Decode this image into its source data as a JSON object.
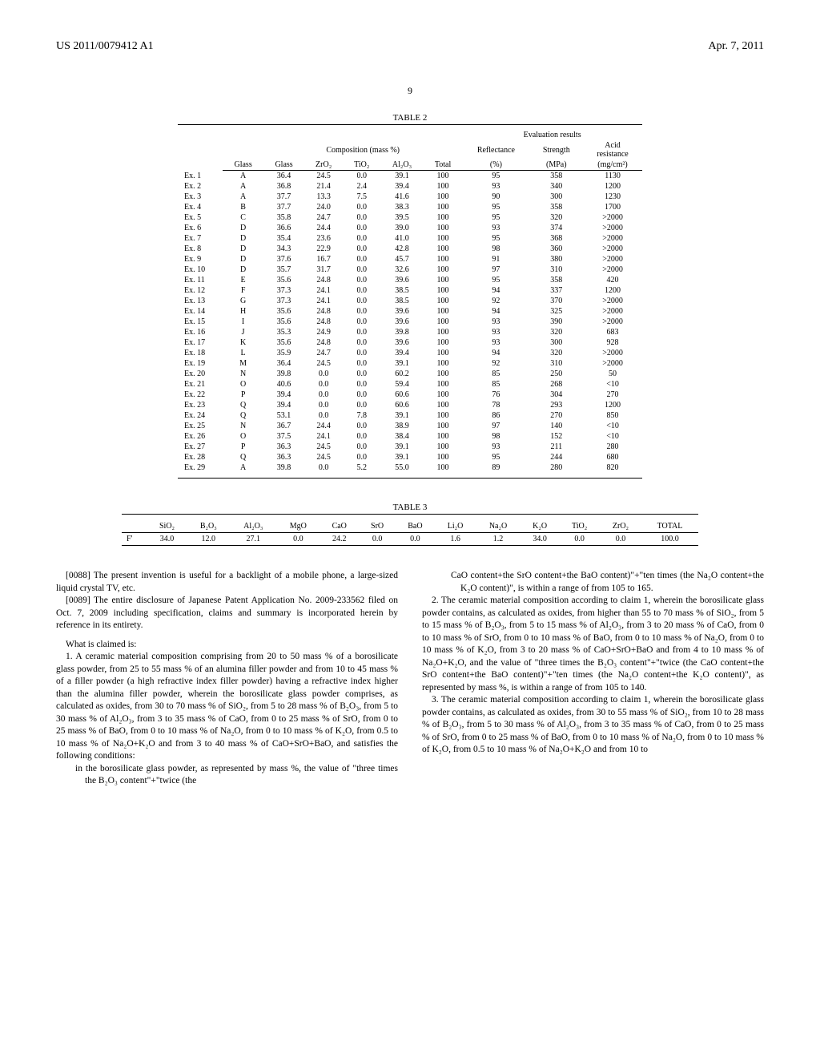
{
  "header": {
    "pub_no": "US 2011/0079412 A1",
    "date": "Apr. 7, 2011"
  },
  "page_number": "9",
  "table2": {
    "caption": "TABLE 2",
    "group_headers": {
      "comp": "Composition (mass %)",
      "eval": "Evaluation results"
    },
    "sub_headers": {
      "refl": "Reflectance",
      "str": "Strength",
      "acid": "Acid\nresistance"
    },
    "col_headers": [
      "",
      "Glass",
      "Glass",
      "ZrO₂",
      "TiO₂",
      "Al₂O₃",
      "Total",
      "(%)",
      "(MPa)",
      "(mg/cm²)"
    ],
    "rows": [
      [
        "Ex. 1",
        "A",
        "36.4",
        "24.5",
        "0.0",
        "39.1",
        "100",
        "95",
        "358",
        "1130"
      ],
      [
        "Ex. 2",
        "A",
        "36.8",
        "21.4",
        "2.4",
        "39.4",
        "100",
        "93",
        "340",
        "1200"
      ],
      [
        "Ex. 3",
        "A",
        "37.7",
        "13.3",
        "7.5",
        "41.6",
        "100",
        "90",
        "300",
        "1230"
      ],
      [
        "Ex. 4",
        "B",
        "37.7",
        "24.0",
        "0.0",
        "38.3",
        "100",
        "95",
        "358",
        "1700"
      ],
      [
        "Ex. 5",
        "C",
        "35.8",
        "24.7",
        "0.0",
        "39.5",
        "100",
        "95",
        "320",
        ">2000"
      ],
      [
        "Ex. 6",
        "D",
        "36.6",
        "24.4",
        "0.0",
        "39.0",
        "100",
        "93",
        "374",
        ">2000"
      ],
      [
        "Ex. 7",
        "D",
        "35.4",
        "23.6",
        "0.0",
        "41.0",
        "100",
        "95",
        "368",
        ">2000"
      ],
      [
        "Ex. 8",
        "D",
        "34.3",
        "22.9",
        "0.0",
        "42.8",
        "100",
        "98",
        "360",
        ">2000"
      ],
      [
        "Ex. 9",
        "D",
        "37.6",
        "16.7",
        "0.0",
        "45.7",
        "100",
        "91",
        "380",
        ">2000"
      ],
      [
        "Ex. 10",
        "D",
        "35.7",
        "31.7",
        "0.0",
        "32.6",
        "100",
        "97",
        "310",
        ">2000"
      ],
      [
        "Ex. 11",
        "E",
        "35.6",
        "24.8",
        "0.0",
        "39.6",
        "100",
        "95",
        "358",
        "420"
      ],
      [
        "Ex. 12",
        "F",
        "37.3",
        "24.1",
        "0.0",
        "38.5",
        "100",
        "94",
        "337",
        "1200"
      ],
      [
        "Ex. 13",
        "G",
        "37.3",
        "24.1",
        "0.0",
        "38.5",
        "100",
        "92",
        "370",
        ">2000"
      ],
      [
        "Ex. 14",
        "H",
        "35.6",
        "24.8",
        "0.0",
        "39.6",
        "100",
        "94",
        "325",
        ">2000"
      ],
      [
        "Ex. 15",
        "I",
        "35.6",
        "24.8",
        "0.0",
        "39.6",
        "100",
        "93",
        "390",
        ">2000"
      ],
      [
        "Ex. 16",
        "J",
        "35.3",
        "24.9",
        "0.0",
        "39.8",
        "100",
        "93",
        "320",
        "683"
      ],
      [
        "Ex. 17",
        "K",
        "35.6",
        "24.8",
        "0.0",
        "39.6",
        "100",
        "93",
        "300",
        "928"
      ],
      [
        "Ex. 18",
        "L",
        "35.9",
        "24.7",
        "0.0",
        "39.4",
        "100",
        "94",
        "320",
        ">2000"
      ],
      [
        "Ex. 19",
        "M",
        "36.4",
        "24.5",
        "0.0",
        "39.1",
        "100",
        "92",
        "310",
        ">2000"
      ],
      [
        "Ex. 20",
        "N",
        "39.8",
        "0.0",
        "0.0",
        "60.2",
        "100",
        "85",
        "250",
        "50"
      ],
      [
        "Ex. 21",
        "O",
        "40.6",
        "0.0",
        "0.0",
        "59.4",
        "100",
        "85",
        "268",
        "<10"
      ],
      [
        "Ex. 22",
        "P",
        "39.4",
        "0.0",
        "0.0",
        "60.6",
        "100",
        "76",
        "304",
        "270"
      ],
      [
        "Ex. 23",
        "Q",
        "39.4",
        "0.0",
        "0.0",
        "60.6",
        "100",
        "78",
        "293",
        "1200"
      ],
      [
        "Ex. 24",
        "Q",
        "53.1",
        "0.0",
        "7.8",
        "39.1",
        "100",
        "86",
        "270",
        "850"
      ],
      [
        "Ex. 25",
        "N",
        "36.7",
        "24.4",
        "0.0",
        "38.9",
        "100",
        "97",
        "140",
        "<10"
      ],
      [
        "Ex. 26",
        "O",
        "37.5",
        "24.1",
        "0.0",
        "38.4",
        "100",
        "98",
        "152",
        "<10"
      ],
      [
        "Ex. 27",
        "P",
        "36.3",
        "24.5",
        "0.0",
        "39.1",
        "100",
        "93",
        "211",
        "280"
      ],
      [
        "Ex. 28",
        "Q",
        "36.3",
        "24.5",
        "0.0",
        "39.1",
        "100",
        "95",
        "244",
        "680"
      ],
      [
        "Ex. 29",
        "A",
        "39.8",
        "0.0",
        "5.2",
        "55.0",
        "100",
        "89",
        "280",
        "820"
      ]
    ]
  },
  "table3": {
    "caption": "TABLE 3",
    "headers": [
      "",
      "SiO₂",
      "B₂O₃",
      "Al₂O₃",
      "MgO",
      "CaO",
      "SrO",
      "BaO",
      "Li₂O",
      "Na₂O",
      "K₂O",
      "TiO₂",
      "ZrO₂",
      "TOTAL"
    ],
    "row": [
      "F'",
      "34.0",
      "12.0",
      "27.1",
      "0.0",
      "24.2",
      "0.0",
      "0.0",
      "1.6",
      "1.2",
      "34.0",
      "0.0",
      "0.0",
      "100.0"
    ]
  },
  "body": {
    "para88": "[0088]    The present invention is useful for a backlight of a mobile phone, a large-sized liquid crystal TV, etc.",
    "para89": "[0089]    The entire disclosure of Japanese Patent Application No. 2009-233562 filed on Oct. 7, 2009 including specification, claims and summary is incorporated herein by reference in its entirety.",
    "claimed": "What is claimed is:",
    "claim1": "1. A ceramic material composition comprising from 20 to 50 mass % of a borosilicate glass powder, from 25 to 55 mass % of an alumina filler powder and from 10 to 45 mass % of a filler powder (a high refractive index filler powder) having a refractive index higher than the alumina filler powder, wherein the borosilicate glass powder comprises, as calculated as oxides, from 30 to 70 mass % of SiO₂, from 5 to 28 mass % of B₂O₃, from 5 to 30 mass % of Al₂O₃, from 3 to 35 mass % of CaO, from 0 to 25 mass % of SrO, from 0 to 25 mass % of BaO, from 0 to 10 mass % of Na₂O, from 0 to 10 mass % of K₂O, from 0.5 to 10 mass % of Na₂O+K₂O and from 3 to 40 mass % of CaO+SrO+BaO, and satisfies the following conditions:",
    "claim1sub": "in the borosilicate glass powder, as represented by mass %, the value of \"three times the B₂O₃ content\"+\"twice (the",
    "claim1cont": "CaO content+the SrO content+the BaO content)\"+\"ten times (the Na₂O content+the K₂O content)\", is within a range of from 105 to 165.",
    "claim2": "2. The ceramic material composition according to claim 1, wherein the borosilicate glass powder contains, as calculated as oxides, from higher than 55 to 70 mass % of SiO₂, from 5 to 15 mass % of B₂O₃, from 5 to 15 mass % of Al₂O₃, from 3 to 20 mass % of CaO, from 0 to 10 mass % of SrO, from 0 to 10 mass % of BaO, from 0 to 10 mass % of Na₂O, from 0 to 10 mass % of K₂O, from 3 to 20 mass % of CaO+SrO+BaO and from 4 to 10 mass % of Na₂O+K₂O, and the value of \"three times the B₂O₃ content\"+\"twice (the CaO content+the SrO content+the BaO content)\"+\"ten times (the Na₂O content+the K₂O content)\", as represented by mass %, is within a range of from 105 to 140.",
    "claim3": "3. The ceramic material composition according to claim 1, wherein the borosilicate glass powder contains, as calculated as oxides, from 30 to 55 mass % of SiO₂, from 10 to 28 mass % of B₂O₃, from 5 to 30 mass % of Al₂O₃, from 3 to 35 mass % of CaO, from 0 to 25 mass % of SrO, from 0 to 25 mass % of BaO, from 0 to 10 mass % of Na₂O, from 0 to 10 mass % of K₂O, from 0.5 to 10 mass % of Na₂O+K₂O and from 10 to"
  }
}
